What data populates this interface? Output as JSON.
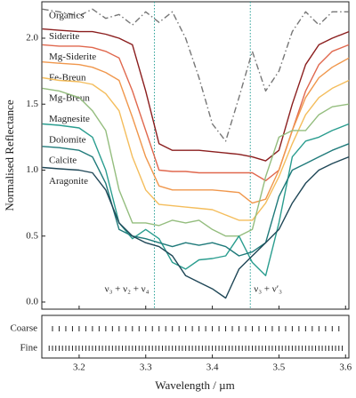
{
  "chart_data": [
    {
      "type": "line",
      "ylabel": "Normalised Reflectance",
      "xlim": [
        3.144,
        3.605
      ],
      "ylim": [
        -0.054,
        2.276
      ],
      "yticks": [
        {
          "value": 0,
          "label": "0.0"
        },
        0.5,
        {
          "value": 1,
          "label": "1.0"
        },
        1.5,
        {
          "value": 2,
          "label": "2.0"
        }
      ],
      "x": [
        3.145,
        3.17,
        3.2,
        3.22,
        3.24,
        3.26,
        3.28,
        3.3,
        3.32,
        3.34,
        3.36,
        3.38,
        3.4,
        3.42,
        3.44,
        3.46,
        3.48,
        3.5,
        3.52,
        3.54,
        3.56,
        3.58,
        3.605
      ],
      "series": [
        {
          "name": "Organics",
          "color": "#777777",
          "linestyle": "dashdot",
          "values": [
            2.22,
            2.2,
            2.17,
            2.22,
            2.15,
            2.18,
            2.1,
            2.2,
            2.12,
            2.2,
            2.0,
            1.7,
            1.35,
            1.22,
            1.55,
            1.9,
            1.6,
            1.75,
            2.05,
            2.2,
            2.1,
            2.2,
            2.2
          ]
        },
        {
          "name": "Siderite",
          "color": "#8b1e1e",
          "linestyle": "solid",
          "values": [
            2.07,
            2.06,
            2.05,
            2.05,
            2.03,
            2.0,
            1.95,
            1.6,
            1.2,
            1.15,
            1.15,
            1.15,
            1.14,
            1.13,
            1.12,
            1.1,
            1.07,
            1.15,
            1.5,
            1.8,
            1.95,
            2.0,
            2.05
          ]
        },
        {
          "name": "Mg-Siderite",
          "color": "#e0684e",
          "linestyle": "solid",
          "values": [
            1.95,
            1.94,
            1.94,
            1.93,
            1.9,
            1.85,
            1.6,
            1.3,
            1.0,
            0.99,
            0.99,
            0.98,
            0.98,
            0.98,
            0.98,
            0.98,
            0.92,
            1.0,
            1.3,
            1.6,
            1.8,
            1.9,
            1.95
          ]
        },
        {
          "name": "Fe-Breun",
          "color": "#f0974c",
          "linestyle": "solid",
          "values": [
            1.82,
            1.81,
            1.8,
            1.78,
            1.74,
            1.68,
            1.4,
            1.1,
            0.88,
            0.85,
            0.85,
            0.85,
            0.85,
            0.84,
            0.83,
            0.75,
            0.78,
            1.0,
            1.3,
            1.55,
            1.7,
            1.78,
            1.85
          ]
        },
        {
          "name": "Mg-Breun",
          "color": "#f4bd5c",
          "linestyle": "solid",
          "values": [
            1.7,
            1.68,
            1.67,
            1.65,
            1.58,
            1.45,
            1.1,
            0.85,
            0.74,
            0.73,
            0.72,
            0.71,
            0.7,
            0.66,
            0.62,
            0.62,
            0.75,
            0.95,
            1.2,
            1.42,
            1.55,
            1.62,
            1.68
          ]
        },
        {
          "name": "Magnesite",
          "color": "#94bd7e",
          "linestyle": "solid",
          "values": [
            1.62,
            1.6,
            1.55,
            1.45,
            1.3,
            0.85,
            0.6,
            0.6,
            0.58,
            0.62,
            0.6,
            0.62,
            0.55,
            0.5,
            0.5,
            0.55,
            0.95,
            1.25,
            1.3,
            1.3,
            1.42,
            1.48,
            1.5
          ]
        },
        {
          "name": "Dolomite",
          "color": "#2a9d8f",
          "linestyle": "solid",
          "values": [
            1.35,
            1.34,
            1.32,
            1.25,
            1.0,
            0.6,
            0.48,
            0.55,
            0.48,
            0.3,
            0.25,
            0.32,
            0.33,
            0.35,
            0.5,
            0.3,
            0.2,
            0.6,
            1.1,
            1.22,
            1.25,
            1.3,
            1.35
          ]
        },
        {
          "name": "Calcite",
          "color": "#1f7a7a",
          "linestyle": "solid",
          "values": [
            1.18,
            1.17,
            1.15,
            1.1,
            0.9,
            0.55,
            0.5,
            0.48,
            0.45,
            0.42,
            0.45,
            0.43,
            0.45,
            0.42,
            0.35,
            0.38,
            0.45,
            0.8,
            1.0,
            1.05,
            1.1,
            1.15,
            1.2
          ]
        },
        {
          "name": "Aragonite",
          "color": "#1f4757",
          "linestyle": "solid",
          "values": [
            1.02,
            1.01,
            1.0,
            0.98,
            0.85,
            0.6,
            0.5,
            0.45,
            0.42,
            0.35,
            0.2,
            0.15,
            0.1,
            0.03,
            0.25,
            0.35,
            0.45,
            0.55,
            0.75,
            0.9,
            1.0,
            1.05,
            1.1
          ]
        }
      ],
      "annotations": [
        {
          "x": 3.313,
          "text": "ν₃ + ν₂ + ν₄",
          "color": "#2aa198",
          "side": "left"
        },
        {
          "x": 3.457,
          "text": "ν₃ + ν′₃",
          "color": "#2aa198",
          "side": "right"
        }
      ]
    },
    {
      "type": "strip",
      "xlabel": "Wavelength / µm",
      "xlim": [
        3.144,
        3.605
      ],
      "xticks": [
        3.2,
        3.3,
        3.4,
        3.5,
        3.6
      ],
      "series": [
        {
          "name": "Coarse",
          "x": [
            3.16,
            3.17,
            3.18,
            3.19,
            3.2,
            3.21,
            3.22,
            3.23,
            3.24,
            3.25,
            3.26,
            3.27,
            3.28,
            3.29,
            3.3,
            3.31,
            3.32,
            3.33,
            3.34,
            3.35,
            3.36,
            3.37,
            3.38,
            3.39,
            3.4,
            3.41,
            3.42,
            3.43,
            3.44,
            3.45,
            3.46,
            3.47,
            3.48,
            3.49,
            3.5,
            3.51,
            3.52,
            3.53,
            3.54,
            3.55,
            3.56,
            3.57,
            3.58,
            3.59
          ]
        },
        {
          "name": "Fine",
          "x": [
            3.155,
            3.16,
            3.165,
            3.17,
            3.175,
            3.18,
            3.185,
            3.19,
            3.195,
            3.2,
            3.205,
            3.21,
            3.215,
            3.22,
            3.225,
            3.23,
            3.235,
            3.24,
            3.245,
            3.25,
            3.255,
            3.26,
            3.265,
            3.27,
            3.275,
            3.28,
            3.285,
            3.29,
            3.295,
            3.3,
            3.305,
            3.31,
            3.315,
            3.32,
            3.325,
            3.33,
            3.335,
            3.34,
            3.345,
            3.35,
            3.355,
            3.36,
            3.365,
            3.37,
            3.375,
            3.38,
            3.385,
            3.39,
            3.395,
            3.4,
            3.405,
            3.41,
            3.415,
            3.42,
            3.425,
            3.43,
            3.435,
            3.44,
            3.445,
            3.45,
            3.455,
            3.46,
            3.465,
            3.47,
            3.475,
            3.48,
            3.485,
            3.49,
            3.495,
            3.5,
            3.505,
            3.51,
            3.515,
            3.52,
            3.525,
            3.53,
            3.535,
            3.54,
            3.545,
            3.55,
            3.555,
            3.56,
            3.565,
            3.57,
            3.575,
            3.58,
            3.585,
            3.59,
            3.595
          ]
        }
      ]
    }
  ]
}
